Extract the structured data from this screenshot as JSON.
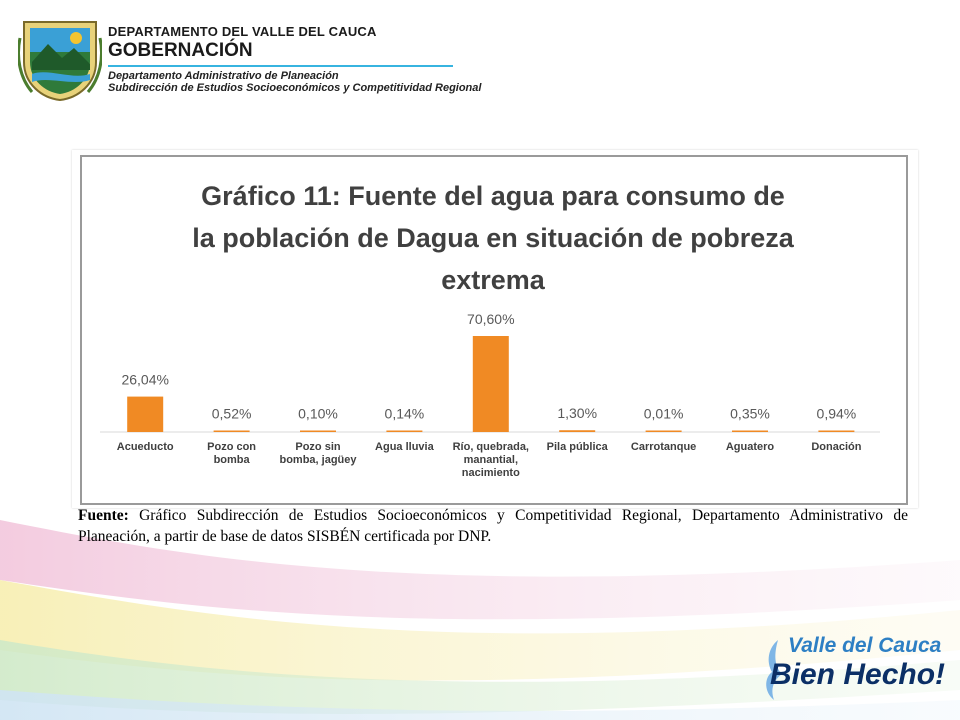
{
  "header": {
    "department": "DEPARTAMENTO DEL VALLE DEL CAUCA",
    "governance": "GOBERNACIÓN",
    "admin_dept": "Departamento  Administrativo de Planeación",
    "subdirection": "Subdirección de Estudios Socioeconómicos y Competitividad Regional"
  },
  "chart_data": {
    "type": "bar",
    "title_lines": [
      "Gráfico 11: Fuente del agua para consumo de",
      "la población de Dagua en situación de pobreza",
      "extrema"
    ],
    "categories": [
      [
        "Acueducto"
      ],
      [
        "Pozo con",
        "bomba"
      ],
      [
        "Pozo sin",
        "bomba, jagüey"
      ],
      [
        "Agua lluvia"
      ],
      [
        "Río, quebrada,",
        "manantial,",
        "nacimiento"
      ],
      [
        "Pila pública"
      ],
      [
        "Carrotanque"
      ],
      [
        "Aguatero"
      ],
      [
        "Donación"
      ]
    ],
    "values": [
      26.04,
      0.52,
      0.1,
      0.14,
      70.6,
      1.3,
      0.01,
      0.35,
      0.94
    ],
    "value_labels": [
      "26,04%",
      "0,52%",
      "0,10%",
      "0,14%",
      "70,60%",
      "1,30%",
      "0,01%",
      "0,35%",
      "0,94%"
    ],
    "ylim": [
      0,
      70.6
    ],
    "grid": false,
    "legend": "none",
    "bar_color": "#f08a24"
  },
  "caption": {
    "label": "Fuente:",
    "text": " Gráfico Subdirección de Estudios Socioeconómicos y Competitividad Regional, Departamento Administrativo de Planeación, a partir de base de datos SISBÉN certificada por DNP."
  },
  "footer_logo": {
    "line1": "Valle del Cauca",
    "line2": "Bien Hecho!"
  }
}
